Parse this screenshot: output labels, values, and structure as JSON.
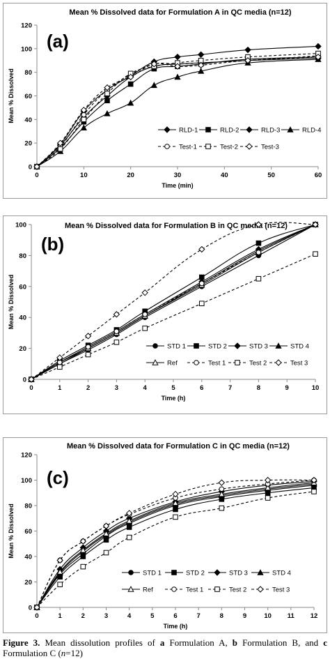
{
  "chart_data": [
    {
      "type": "line",
      "panel_label": "(a)",
      "title": "Mean % Dissolved data for Formulation A in QC media (n=12)",
      "xlabel": "Time (min)",
      "ylabel": "Mean % Dissolved",
      "xlim": [
        0,
        60
      ],
      "ylim": [
        0,
        120
      ],
      "xticks": [
        0,
        10,
        20,
        30,
        40,
        50,
        60
      ],
      "yticks": [
        0,
        20,
        40,
        60,
        80,
        100,
        120
      ],
      "grid": false,
      "legend_position": "bottom-right",
      "legend_columns": 4,
      "x": [
        0,
        5,
        10,
        15,
        20,
        25,
        30,
        35,
        45,
        60
      ],
      "series": [
        {
          "name": "RLD-1",
          "marker": "diamond",
          "filled": true,
          "dashed": false,
          "values": [
            0,
            18,
            42,
            60,
            76,
            85,
            87,
            88,
            90,
            92
          ]
        },
        {
          "name": "RLD-2",
          "marker": "square",
          "filled": true,
          "dashed": false,
          "values": [
            0,
            16,
            38,
            56,
            70,
            83,
            85,
            87,
            91,
            93
          ]
        },
        {
          "name": "RLD-3",
          "marker": "diamond",
          "filled": true,
          "dashed": false,
          "values": [
            0,
            19,
            47,
            65,
            77,
            89,
            93,
            95,
            99,
            102
          ]
        },
        {
          "name": "RLD-4",
          "marker": "triangle",
          "filled": true,
          "dashed": false,
          "values": [
            0,
            13,
            33,
            45,
            54,
            69,
            76,
            81,
            88,
            91
          ]
        },
        {
          "name": "Test-1",
          "marker": "circle",
          "filled": false,
          "dashed": true,
          "values": [
            0,
            17,
            44,
            65,
            78,
            87,
            87,
            88,
            90,
            94
          ]
        },
        {
          "name": "Test-2",
          "marker": "square",
          "filled": false,
          "dashed": true,
          "values": [
            0,
            15,
            40,
            62,
            79,
            85,
            88,
            90,
            93,
            96
          ]
        },
        {
          "name": "Test-3",
          "marker": "diamond",
          "filled": false,
          "dashed": true,
          "values": [
            0,
            20,
            48,
            67,
            76,
            87,
            85,
            86,
            90,
            93
          ]
        }
      ]
    },
    {
      "type": "line",
      "panel_label": "(b)",
      "title": "Mean % Dissolved data for Formulation B in QC media (n=12)",
      "xlabel": "Time (h)",
      "ylabel": "Mean % Dissolved",
      "xlim": [
        0,
        10
      ],
      "ylim": [
        0,
        100
      ],
      "xticks": [
        0,
        1,
        2,
        3,
        4,
        5,
        6,
        7,
        8,
        9,
        10
      ],
      "yticks": [
        0,
        20,
        40,
        60,
        80,
        100
      ],
      "grid": false,
      "legend_position": "bottom-right",
      "legend_columns": 4,
      "x": [
        0,
        1,
        2,
        3,
        4,
        6,
        8,
        10
      ],
      "series": [
        {
          "name": "STD 1",
          "marker": "circle",
          "filled": true,
          "dashed": false,
          "values": [
            0,
            10,
            19,
            29,
            40,
            60,
            80,
            100
          ]
        },
        {
          "name": "STD 2",
          "marker": "square",
          "filled": true,
          "dashed": false,
          "values": [
            0,
            12,
            22,
            32,
            44,
            66,
            88,
            100
          ]
        },
        {
          "name": "STD 3",
          "marker": "diamond",
          "filled": true,
          "dashed": false,
          "values": [
            0,
            11,
            21,
            31,
            42,
            63,
            84,
            100
          ]
        },
        {
          "name": "STD 4",
          "marker": "triangle",
          "filled": true,
          "dashed": false,
          "values": [
            0,
            10,
            20,
            30,
            41,
            62,
            83,
            100
          ]
        },
        {
          "name": "Ref",
          "marker": "triangle",
          "filled": false,
          "dashed": false,
          "values": [
            0,
            11,
            20,
            30,
            41,
            61,
            82,
            100
          ]
        },
        {
          "name": "Test 1",
          "marker": "circle",
          "filled": false,
          "dashed": true,
          "values": [
            0,
            11,
            21,
            31,
            42,
            62,
            82,
            100
          ]
        },
        {
          "name": "Test 2",
          "marker": "square",
          "filled": false,
          "dashed": true,
          "values": [
            0,
            8,
            16,
            24,
            33,
            49,
            65,
            81
          ]
        },
        {
          "name": "Test 3",
          "marker": "diamond",
          "filled": false,
          "dashed": true,
          "values": [
            0,
            14,
            28,
            42,
            56,
            84,
            100,
            100
          ]
        }
      ]
    },
    {
      "type": "line",
      "panel_label": "(c)",
      "title": "Mean % Dissolved data for Formulation C in QC media (n=12)",
      "xlabel": "Time (h)",
      "ylabel": "Mean % Dissolved",
      "xlim": [
        0,
        12
      ],
      "ylim": [
        0,
        120
      ],
      "xticks": [
        0,
        1,
        2,
        3,
        4,
        5,
        6,
        7,
        8,
        9,
        10,
        11,
        12
      ],
      "yticks": [
        0,
        20,
        40,
        60,
        80,
        100,
        120
      ],
      "grid": false,
      "legend_position": "bottom-right",
      "legend_columns": 4,
      "x": [
        0,
        1,
        2,
        3,
        4,
        6,
        8,
        10,
        12
      ],
      "series": [
        {
          "name": "STD 1",
          "marker": "circle",
          "filled": true,
          "dashed": false,
          "values": [
            0,
            26,
            42,
            56,
            66,
            80,
            87,
            92,
            96
          ]
        },
        {
          "name": "STD 2",
          "marker": "square",
          "filled": true,
          "dashed": false,
          "values": [
            0,
            24,
            40,
            53,
            63,
            77,
            85,
            90,
            94
          ]
        },
        {
          "name": "STD 3",
          "marker": "diamond",
          "filled": true,
          "dashed": false,
          "values": [
            0,
            30,
            47,
            60,
            70,
            83,
            91,
            96,
            99
          ]
        },
        {
          "name": "STD 4",
          "marker": "triangle",
          "filled": true,
          "dashed": false,
          "values": [
            0,
            27,
            44,
            57,
            67,
            81,
            88,
            93,
            97
          ]
        },
        {
          "name": "Ref",
          "marker": "triangle",
          "filled": false,
          "dashed": false,
          "values": [
            0,
            28,
            45,
            58,
            68,
            82,
            89,
            94,
            98
          ]
        },
        {
          "name": "Test 1",
          "marker": "circle",
          "filled": false,
          "dashed": true,
          "values": [
            0,
            37,
            52,
            64,
            73,
            86,
            93,
            97,
            100
          ]
        },
        {
          "name": "Test 2",
          "marker": "square",
          "filled": false,
          "dashed": true,
          "values": [
            0,
            18,
            32,
            43,
            55,
            71,
            78,
            86,
            91
          ]
        },
        {
          "name": "Test 3",
          "marker": "diamond",
          "filled": false,
          "dashed": true,
          "values": [
            0,
            37,
            52,
            64,
            74,
            89,
            98,
            100,
            100
          ]
        }
      ]
    }
  ],
  "caption": {
    "label": "Figure 3.",
    "text_1": " Mean dissolution profiles of ",
    "a_letter": "a",
    "text_2": " Formulation A, ",
    "b_letter": "b",
    "text_3": " Formulation B, and ",
    "c_letter": "c",
    "text_4": " Formulation C (",
    "n_text": "n",
    "text_5": "=12)"
  }
}
